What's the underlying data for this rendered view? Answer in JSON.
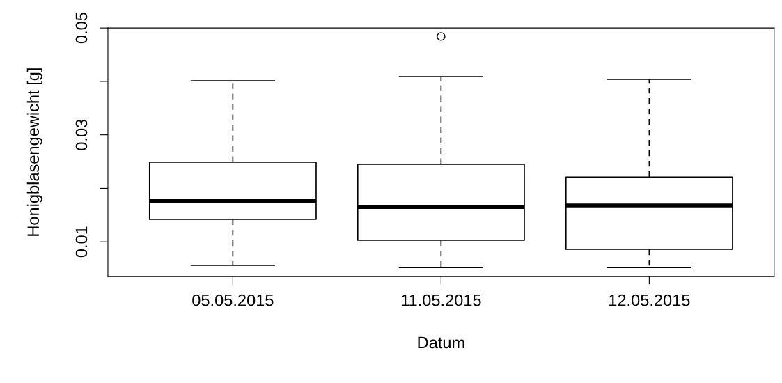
{
  "chart_data": {
    "type": "box",
    "xlabel": "Datum",
    "ylabel": "Honigblasengewicht [g]",
    "categories": [
      "05.05.2015",
      "11.05.2015",
      "12.05.2015"
    ],
    "boxes": [
      {
        "low": 0.0056,
        "q1": 0.0142,
        "median": 0.0176,
        "q3": 0.0249,
        "high": 0.0401
      },
      {
        "low": 0.0052,
        "q1": 0.0103,
        "median": 0.0165,
        "q3": 0.0245,
        "high": 0.0409,
        "outliers": [
          0.0484
        ]
      },
      {
        "low": 0.0052,
        "q1": 0.0086,
        "median": 0.0168,
        "q3": 0.0221,
        "high": 0.0404
      }
    ],
    "ylim": [
      0.0035,
      0.05
    ],
    "yticks": [
      0.01,
      {
        "value": 0.02,
        "label": null
      },
      0.03,
      {
        "value": 0.04,
        "label": null
      },
      0.05
    ],
    "grid": false
  }
}
